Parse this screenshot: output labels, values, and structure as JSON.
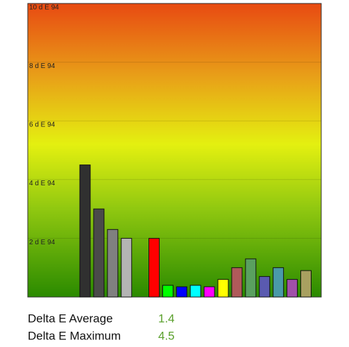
{
  "chart_data": {
    "type": "bar",
    "categories": [
      null,
      null,
      null,
      null,
      null,
      null,
      null,
      null,
      null,
      null,
      null,
      null,
      null,
      null,
      null,
      null,
      null,
      null,
      null,
      null,
      null
    ],
    "values": [
      null,
      null,
      null,
      null,
      4.5,
      3.0,
      2.3,
      2.0,
      null,
      2.0,
      0.4,
      0.35,
      0.4,
      0.35,
      0.6,
      1.0,
      1.3,
      0.7,
      1.0,
      0.6,
      0.9
    ],
    "colors": [
      null,
      null,
      null,
      null,
      "#303030",
      "#4a4a4a",
      "#808080",
      "#b4b4b4",
      null,
      "#ff0000",
      "#00ff00",
      "#0000ff",
      "#00ffff",
      "#ff00ff",
      "#ffff00",
      "#b05a5a",
      "#5aa060",
      "#5a5ab0",
      "#4a9aa8",
      "#a050a8",
      "#a8a060"
    ],
    "ylim": [
      0,
      10
    ],
    "yticks": [
      {
        "value": 2,
        "label": "2 d E 94"
      },
      {
        "value": 4,
        "label": "4 d E 94"
      },
      {
        "value": 6,
        "label": "6 d E 94"
      },
      {
        "value": 8,
        "label": "8 d E 94"
      },
      {
        "value": 10,
        "label": "10 d E 94"
      }
    ],
    "grid": true
  },
  "stats": [
    {
      "label": "Delta E Average",
      "value": "1.4"
    },
    {
      "label": "Delta E Maximum",
      "value": "4.5"
    }
  ]
}
